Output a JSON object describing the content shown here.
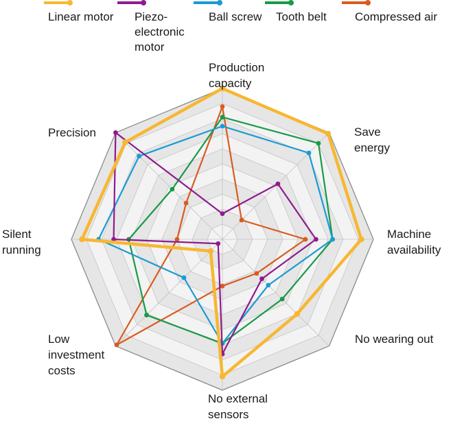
{
  "chart_data": {
    "type": "radar",
    "axes": [
      "Production capacity",
      "Save energy",
      "Machine availability",
      "No wearing out",
      "No external sensors",
      "Low investment costs",
      "Silent running",
      "Precision"
    ],
    "axis_label_lines": [
      [
        "Production",
        "capacity"
      ],
      [
        "Save",
        "energy"
      ],
      [
        "Machine",
        "availability"
      ],
      [
        "No wearing out"
      ],
      [
        "No external",
        "sensors"
      ],
      [
        "Low",
        "investment",
        "costs"
      ],
      [
        "Silent",
        "running"
      ],
      [
        "Precision"
      ]
    ],
    "scale_max": 10,
    "rings": 10,
    "series": [
      {
        "name": "Linear motor",
        "label_lines": [
          "Linear motor"
        ],
        "color": "#f7b731",
        "values": [
          10,
          9.9,
          9.2,
          7.0,
          9.1,
          1.1,
          9.3,
          9.1
        ]
      },
      {
        "name": "Piezo-electronic motor",
        "label_lines": [
          "Piezo-",
          "electronic",
          "motor"
        ],
        "color": "#8e1b8e",
        "values": [
          1.7,
          5.2,
          6.2,
          3.7,
          7.6,
          0.4,
          7.2,
          10
        ]
      },
      {
        "name": "Ball screw",
        "label_lines": [
          "Ball screw"
        ],
        "color": "#1a9ad6",
        "values": [
          7.5,
          8.1,
          7.3,
          4.3,
          6.9,
          3.6,
          8.2,
          7.8
        ]
      },
      {
        "name": "Tooth belt",
        "label_lines": [
          "Tooth belt"
        ],
        "color": "#189a47",
        "values": [
          8.1,
          9.0,
          7.3,
          5.6,
          6.9,
          7.1,
          6.2,
          4.7
        ]
      },
      {
        "name": "Compressed air",
        "label_lines": [
          "Compressed air"
        ],
        "color": "#d95b1e",
        "values": [
          8.8,
          1.8,
          5.5,
          3.2,
          3.1,
          9.9,
          3.0,
          3.4
        ]
      }
    ]
  }
}
